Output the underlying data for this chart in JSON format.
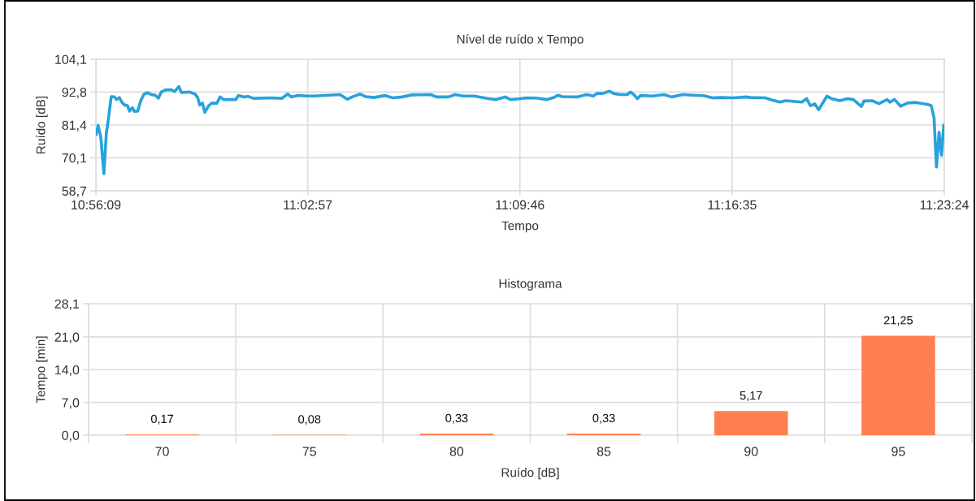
{
  "chart_data": [
    {
      "type": "line",
      "title": "Nível de ruído x Tempo",
      "xlabel": "Tempo",
      "ylabel": "Ruído [dB]",
      "x": [
        10.936,
        10.937,
        10.9384,
        10.9401,
        10.9414,
        10.9425,
        10.944,
        10.9457,
        10.9468,
        10.9483,
        10.9498,
        10.9512,
        10.9527,
        10.9538,
        10.9553,
        10.9564,
        10.9582,
        10.9599,
        10.9616,
        10.9635,
        10.9654,
        10.9675,
        10.9693,
        10.9708,
        10.9729,
        10.9759,
        10.978,
        10.9802,
        10.9816,
        10.986,
        10.9889,
        10.9903,
        10.9914,
        10.9928,
        10.9941,
        10.9962,
        10.9979,
        11.0005,
        11.0023,
        11.0041,
        11.0107,
        11.0121,
        11.015,
        11.0172,
        11.0201,
        11.0295,
        11.0353,
        11.0385,
        11.0404,
        11.044,
        11.0491,
        11.0527,
        11.0665,
        11.0704,
        11.073,
        11.0773,
        11.0803,
        11.0846,
        11.0904,
        11.0947,
        11.0998,
        11.1049,
        11.1151,
        11.118,
        11.1245,
        11.1281,
        11.1325,
        11.1382,
        11.1455,
        11.1499,
        11.1549,
        11.1578,
        11.1629,
        11.1665,
        11.1716,
        11.1774,
        11.181,
        11.1832,
        11.1854,
        11.1934,
        11.1984,
        11.2021,
        11.2042,
        11.2071,
        11.2108,
        11.2129,
        11.2165,
        11.2202,
        11.2221,
        11.2238,
        11.2257,
        11.2274,
        11.2339,
        11.2398,
        11.2441,
        11.2499,
        11.2615,
        11.2659,
        11.2702,
        11.2774,
        11.284,
        11.2861,
        11.2941,
        11.2978,
        11.3021,
        11.305,
        11.3137,
        11.3163,
        11.3183,
        11.3207,
        11.3227,
        11.3272,
        11.3296,
        11.334,
        11.3383,
        11.3413,
        11.3456,
        11.347,
        11.3514,
        11.355,
        11.3594,
        11.3608,
        11.3633,
        11.3666,
        11.3703,
        11.3746,
        11.3804,
        11.383,
        11.3845,
        11.3858,
        11.3872,
        11.3885,
        11.3897
      ],
      "series": [
        {
          "color": "#27a2dc",
          "values": [
            78.2,
            81.3,
            77.3,
            64.6,
            78.7,
            83.4,
            91.2,
            91.1,
            90.2,
            90.9,
            89.2,
            88.3,
            88.1,
            86.2,
            87.4,
            86.1,
            86.2,
            90.0,
            92.1,
            92.6,
            91.9,
            91.7,
            90.7,
            92.8,
            93.5,
            93.6,
            93.0,
            94.7,
            92.6,
            92.8,
            92.1,
            90.9,
            88.3,
            89.0,
            85.8,
            88.1,
            89.0,
            88.9,
            91.1,
            90.2,
            90.2,
            91.6,
            91.1,
            91.3,
            90.6,
            90.8,
            90.6,
            92.1,
            91.1,
            91.6,
            91.4,
            91.4,
            91.9,
            90.3,
            91.1,
            92.1,
            91.2,
            90.9,
            91.6,
            90.8,
            91.1,
            91.8,
            91.9,
            91.1,
            91.1,
            91.9,
            91.4,
            91.4,
            90.6,
            90.2,
            91.1,
            90.2,
            90.5,
            90.8,
            90.7,
            90.2,
            90.9,
            91.7,
            91.2,
            91.1,
            91.9,
            91.4,
            92.3,
            92.3,
            93.1,
            92.3,
            91.9,
            91.9,
            92.8,
            91.9,
            90.5,
            91.6,
            91.4,
            91.9,
            91.1,
            91.9,
            91.5,
            90.8,
            90.9,
            90.8,
            91.1,
            90.9,
            90.8,
            90.0,
            89.3,
            89.8,
            89.3,
            90.5,
            88.1,
            88.7,
            86.7,
            91.4,
            90.5,
            89.8,
            90.5,
            90.2,
            87.8,
            89.7,
            89.8,
            88.8,
            90.2,
            89.3,
            90.2,
            87.9,
            89.0,
            89.2,
            88.6,
            88.1,
            83.9,
            66.9,
            78.9,
            71.0,
            81.3
          ]
        }
      ],
      "xlim": [
        10.9358,
        11.39
      ],
      "xticks": [
        {
          "value": 10.9358,
          "label": "10:56:09"
        },
        {
          "value": 11.0492,
          "label": "11:02:57"
        },
        {
          "value": 11.1628,
          "label": "11:09:46"
        },
        {
          "value": 11.2764,
          "label": "11:16:35"
        },
        {
          "value": 11.39,
          "label": "11:23:24"
        }
      ],
      "ylim": [
        58.7,
        104.1
      ],
      "yticks": [
        {
          "value": 58.7,
          "label": "58,7"
        },
        {
          "value": 70.1,
          "label": "70,1"
        },
        {
          "value": 81.4,
          "label": "81,4"
        },
        {
          "value": 92.8,
          "label": "92,8"
        },
        {
          "value": 104.1,
          "label": "104,1"
        }
      ],
      "grid": true,
      "marker": "none",
      "line_style": "solid"
    },
    {
      "type": "bar",
      "title": "Histograma",
      "xlabel": "Ruído [dB]",
      "ylabel": "Tempo [min]",
      "categories": [
        "70",
        "75",
        "80",
        "85",
        "90",
        "95"
      ],
      "values": [
        0.17,
        0.08,
        0.33,
        0.33,
        5.17,
        21.25
      ],
      "value_labels": [
        "0,17",
        "0,08",
        "0,33",
        "0,33",
        "5,17",
        "21,25"
      ],
      "color": "#ff7f50",
      "ylim": [
        0,
        28.1
      ],
      "yticks": [
        {
          "value": 0,
          "label": "0,0"
        },
        {
          "value": 7,
          "label": "7,0"
        },
        {
          "value": 14,
          "label": "14,0"
        },
        {
          "value": 21,
          "label": "21,0"
        },
        {
          "value": 28.1,
          "label": "28,1"
        }
      ],
      "grid": true
    }
  ]
}
